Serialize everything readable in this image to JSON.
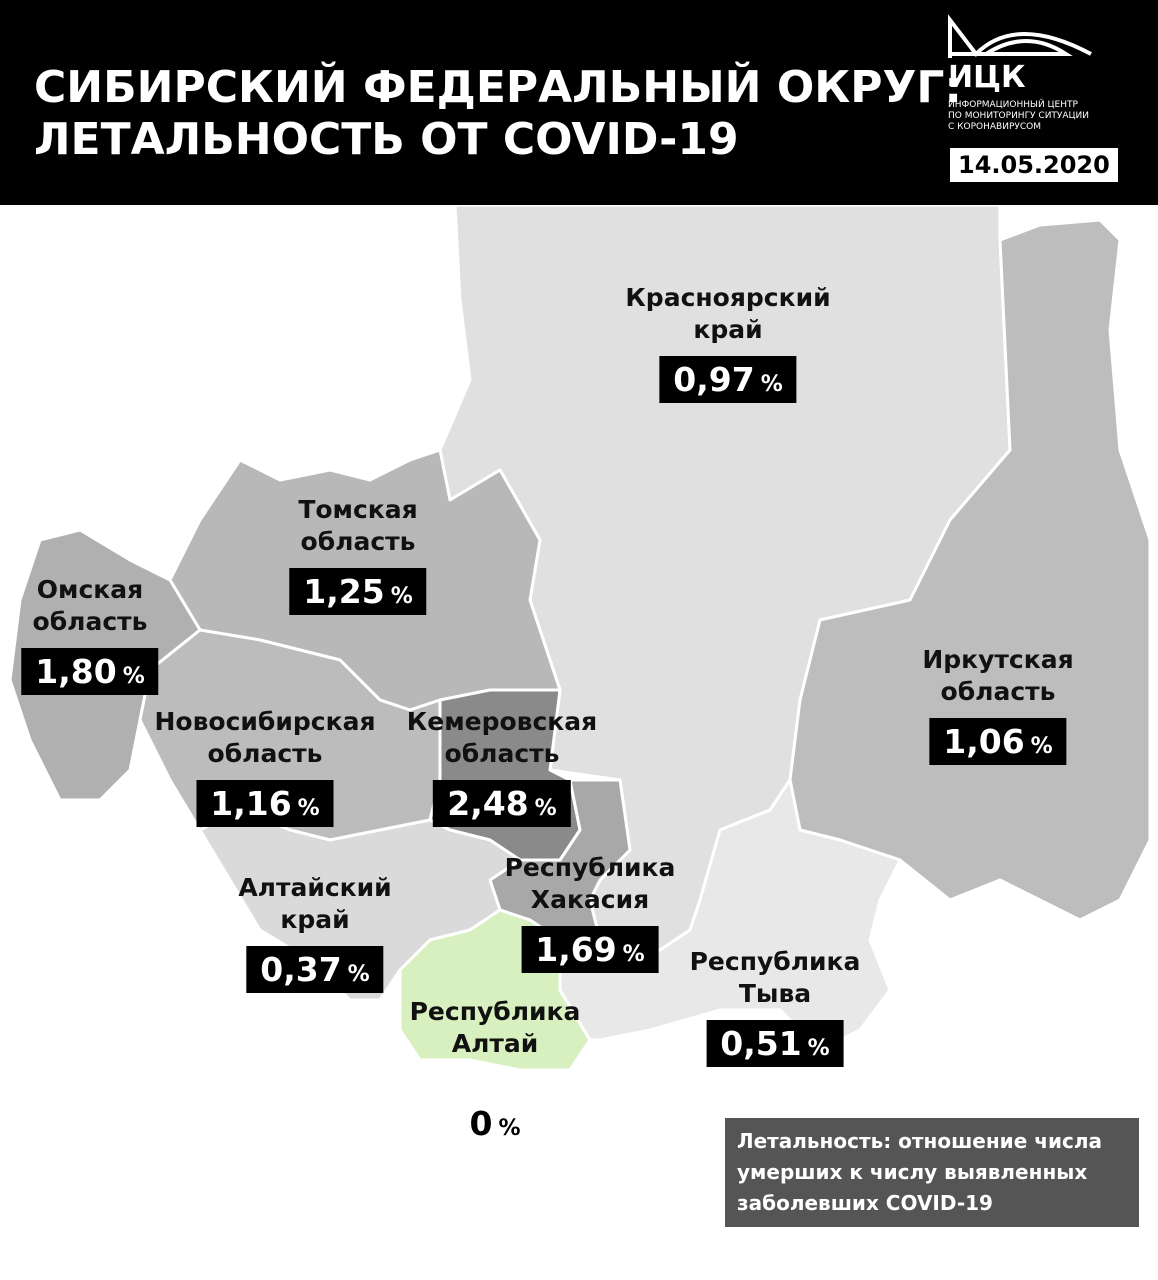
{
  "header": {
    "title": [
      "СИБИРСКИЙ ФЕДЕРАЛЬНЫЙ ОКРУГ:",
      "ЛЕТАЛЬНОСТЬ ОТ COVID-19"
    ],
    "logo": {
      "name": "ИЦК",
      "subtitle": [
        "ИНФОРМАЦИОННЫЙ ЦЕНТР",
        "ПО МОНИТОРИНГУ СИТУАЦИИ",
        "С КОРОНАВИРУСОМ"
      ]
    },
    "date": "14.05.2020"
  },
  "regions": [
    {
      "name": [
        "Красноярский",
        "край"
      ],
      "value": "0,97",
      "unit": "%"
    },
    {
      "name": [
        "Томская",
        "область"
      ],
      "value": "1,25",
      "unit": "%"
    },
    {
      "name": [
        "Омская",
        "область"
      ],
      "value": "1,80",
      "unit": "%"
    },
    {
      "name": [
        "Новосибирская",
        "область"
      ],
      "value": "1,16",
      "unit": "%"
    },
    {
      "name": [
        "Кемеровская",
        "область"
      ],
      "value": "2,48",
      "unit": "%"
    },
    {
      "name": [
        "Республика",
        "Хакасия"
      ],
      "value": "1,69",
      "unit": "%"
    },
    {
      "name": [
        "Алтайский",
        "край"
      ],
      "value": "0,37",
      "unit": "%"
    },
    {
      "name": [
        "Республика",
        "Алтай"
      ],
      "value": "0",
      "unit": "%"
    },
    {
      "name": [
        "Республика",
        "Тыва"
      ],
      "value": "0,51",
      "unit": "%"
    },
    {
      "name": [
        "Иркутская",
        "область"
      ],
      "value": "1,06",
      "unit": "%"
    }
  ],
  "note": [
    "Летальность: отношение числа",
    "умерших к числу выявленных",
    "заболевших COVID-19"
  ]
}
